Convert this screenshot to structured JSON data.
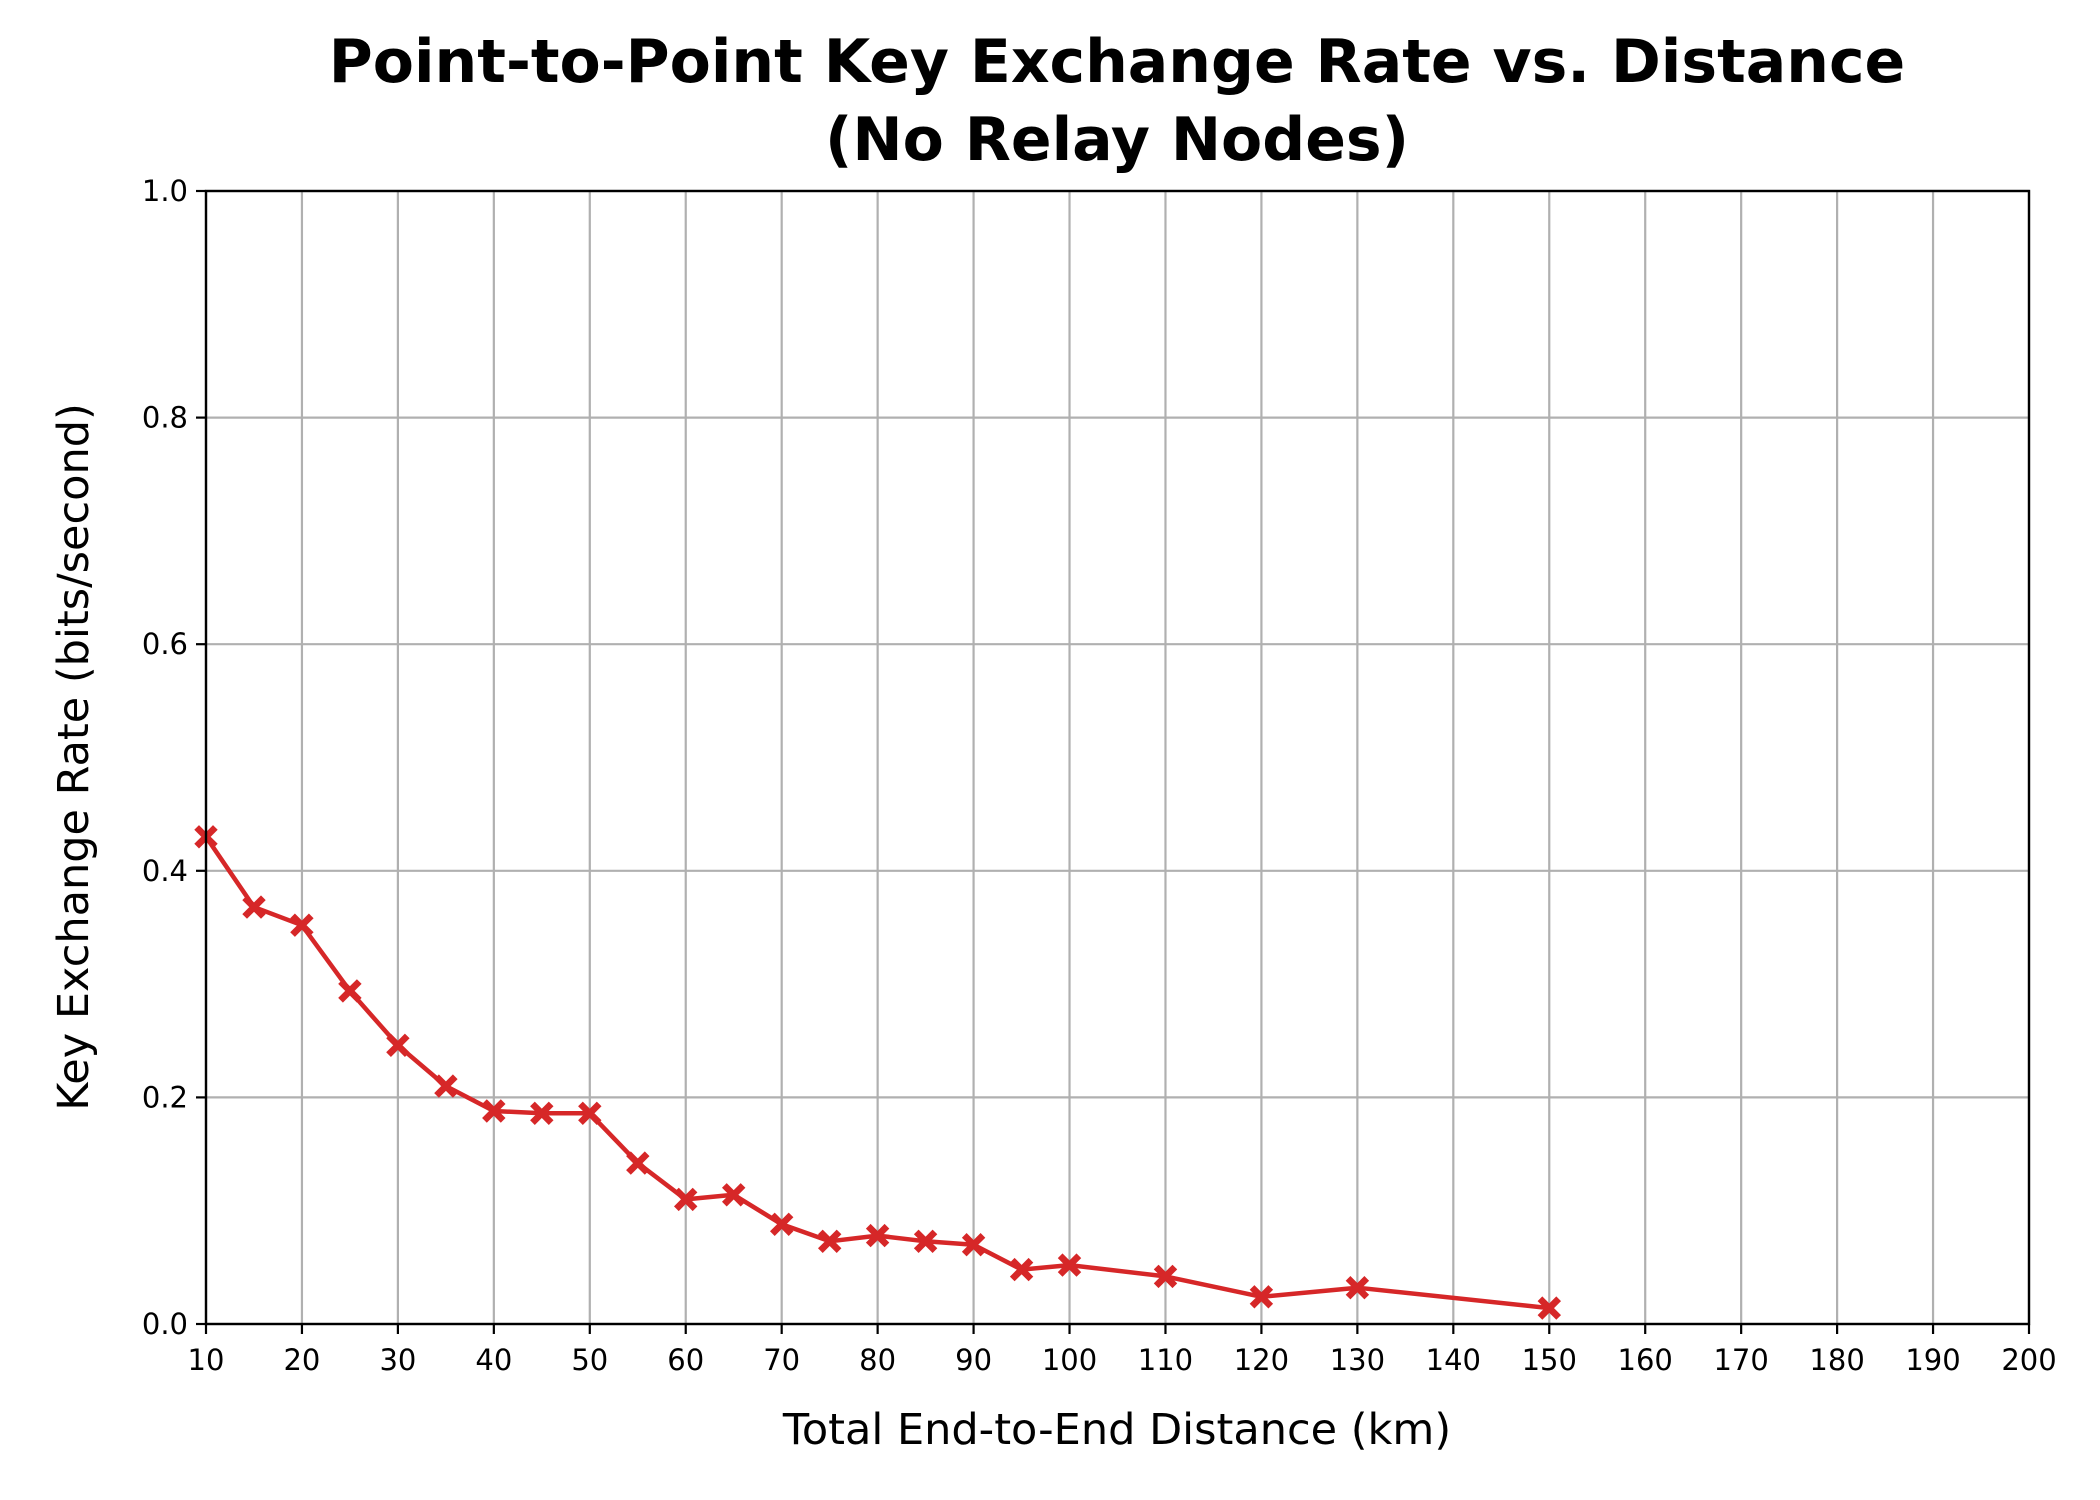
{
  "chart_data": {
    "type": "line",
    "title": "Point-to-Point Key Exchange Rate vs. Distance",
    "subtitle": "(No Relay Nodes)",
    "xlabel": "Total End-to-End Distance (km)",
    "ylabel": "Key Exchange Rate (bits/second)",
    "xlim": [
      10,
      200
    ],
    "ylim": [
      0,
      1.0
    ],
    "xticks": [
      10,
      20,
      30,
      40,
      50,
      60,
      70,
      80,
      90,
      100,
      110,
      120,
      130,
      140,
      150,
      160,
      170,
      180,
      190,
      200
    ],
    "yticks": [
      "0.0",
      "0.2",
      "0.4",
      "0.6",
      "0.8",
      "1.0"
    ],
    "grid": true,
    "series": [
      {
        "color": "#d62728",
        "marker": "X",
        "x": [
          10,
          15,
          20,
          25,
          30,
          35,
          40,
          45,
          50,
          55,
          60,
          65,
          70,
          75,
          80,
          85,
          90,
          95,
          100,
          110,
          120,
          130,
          150
        ],
        "y": [
          0.43,
          0.368,
          0.352,
          0.294,
          0.246,
          0.21,
          0.188,
          0.186,
          0.186,
          0.142,
          0.11,
          0.114,
          0.088,
          0.073,
          0.078,
          0.073,
          0.07,
          0.048,
          0.052,
          0.042,
          0.024,
          0.032,
          0.014
        ]
      }
    ]
  }
}
